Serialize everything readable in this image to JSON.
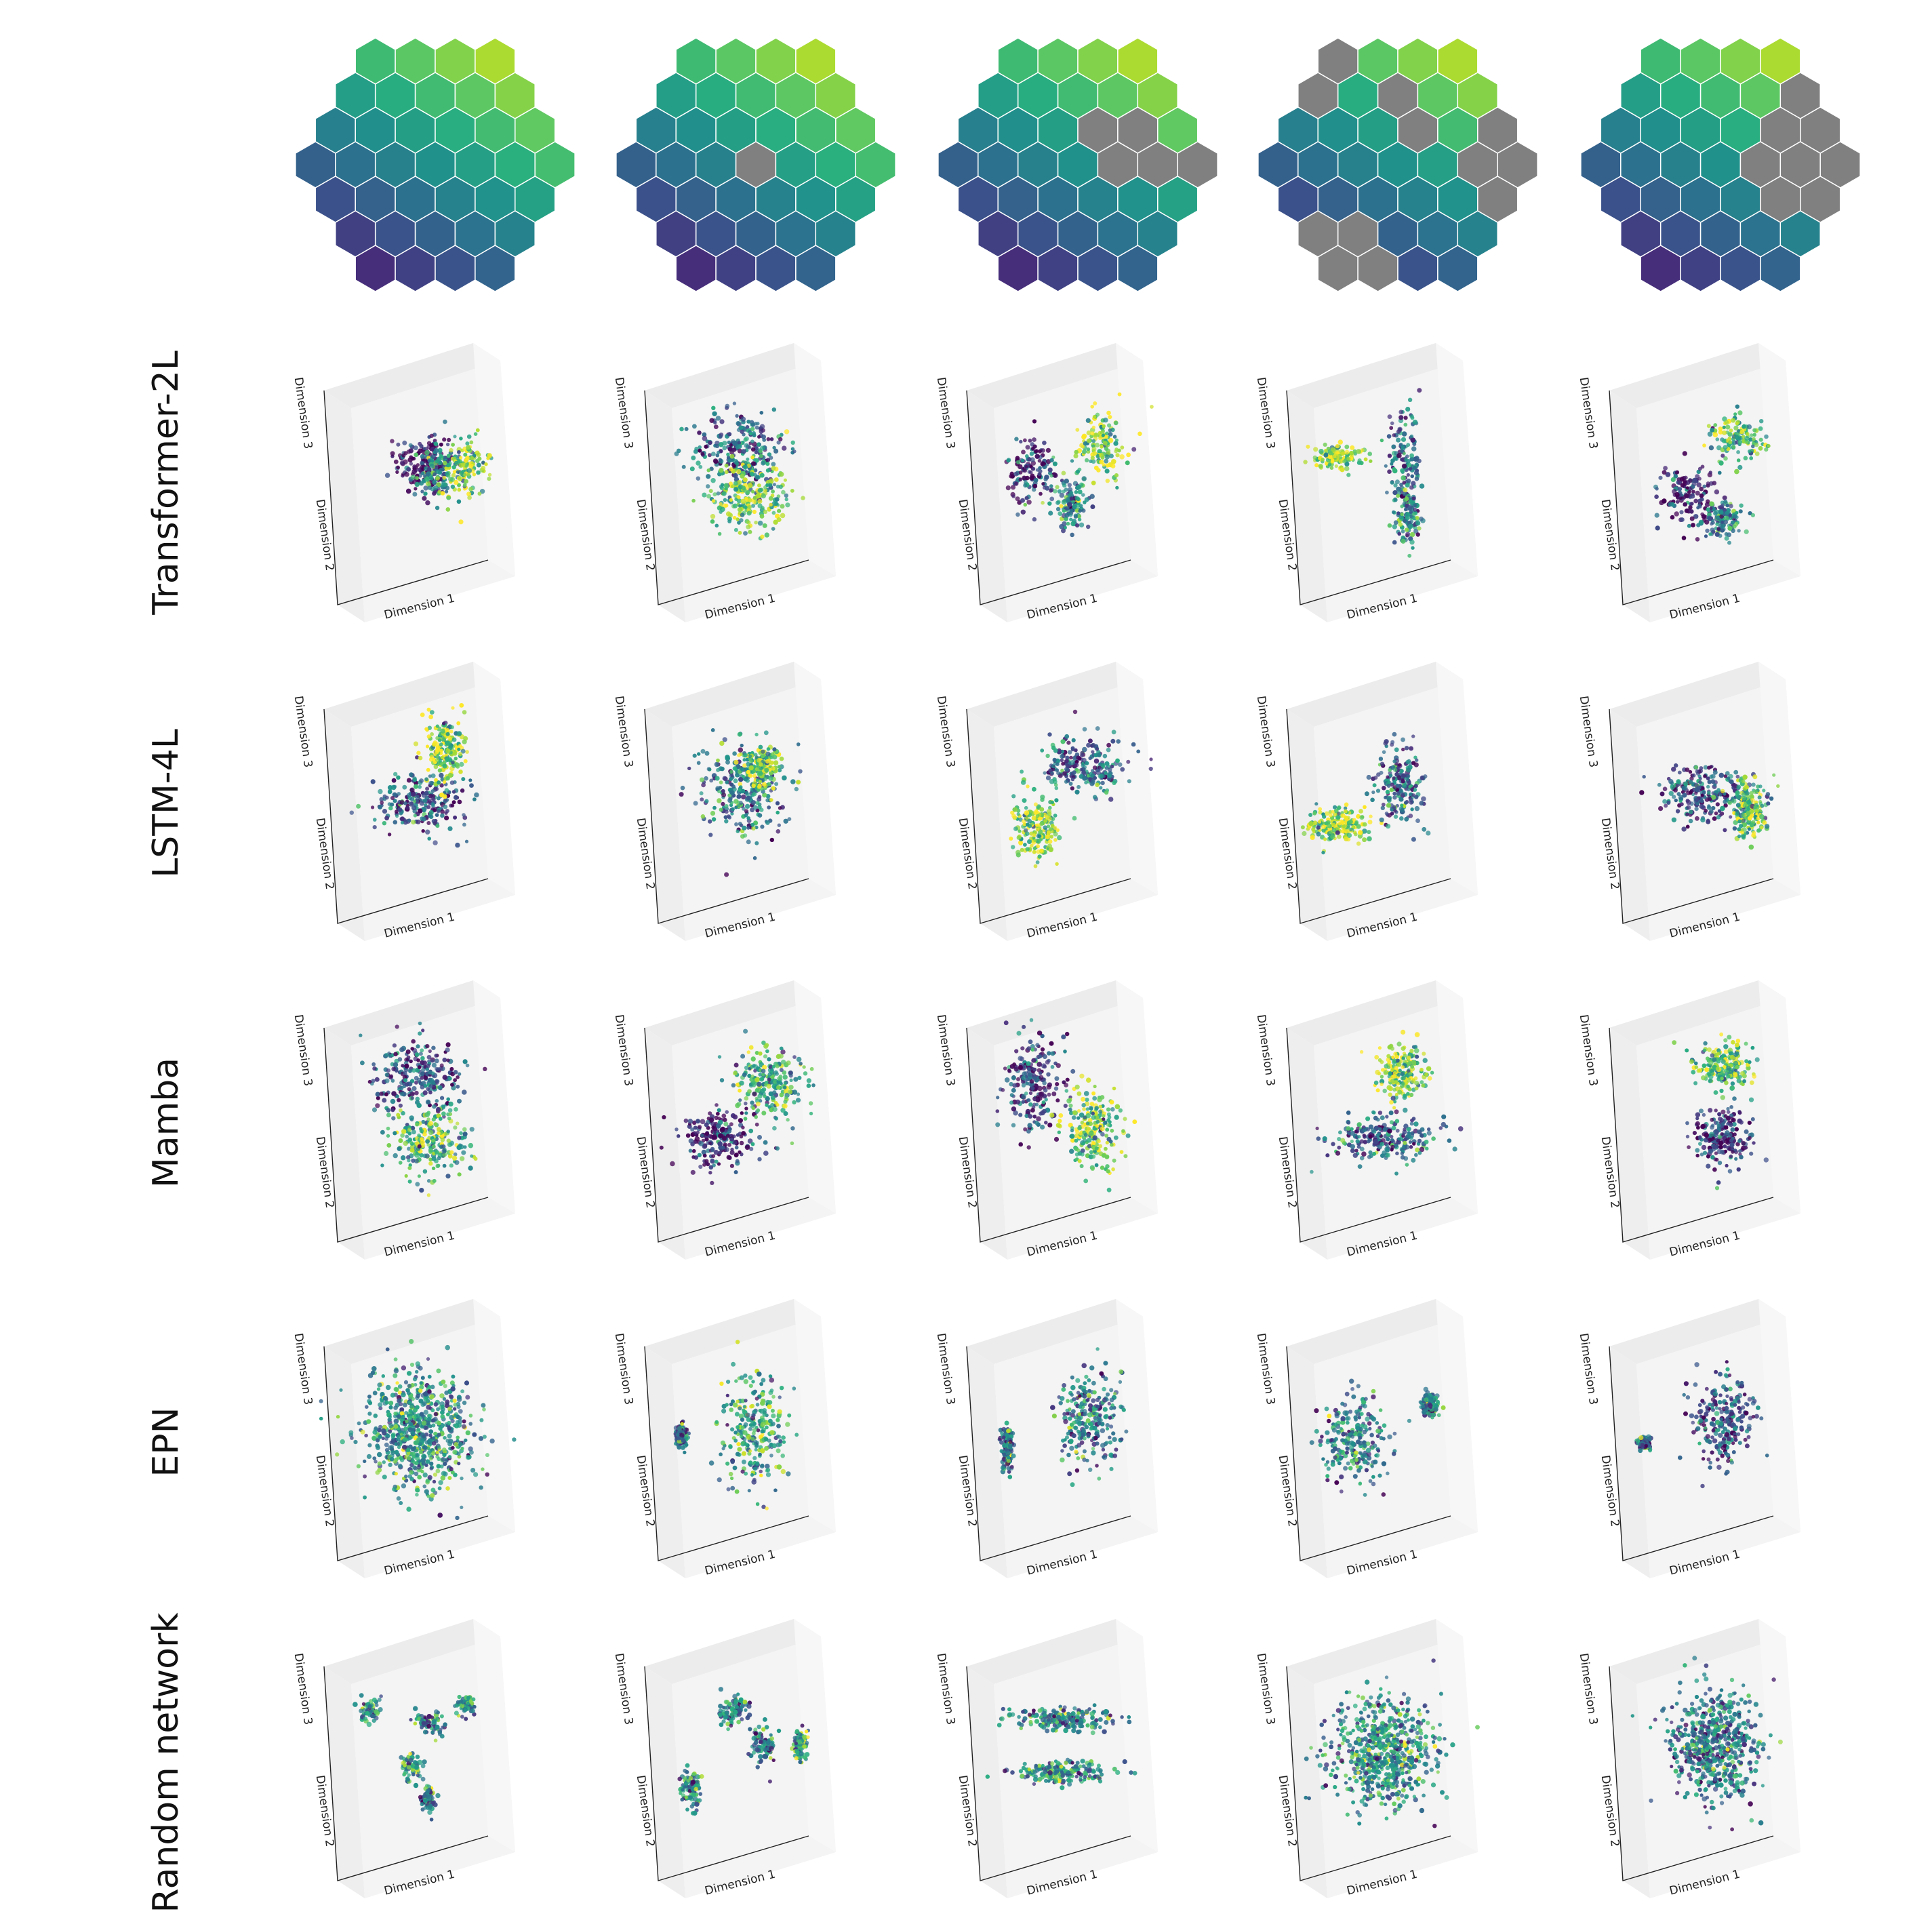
{
  "figure": {
    "row_labels": [
      "Transformer-2L",
      "LSTM-4L",
      "Mamba",
      "EPN",
      "Random network"
    ],
    "axis_labels": {
      "x": "Dimension 1",
      "y": "Dimension 2",
      "z": "Dimension 3"
    },
    "colormap": [
      "#440154",
      "#472d7b",
      "#3b528b",
      "#2c728e",
      "#21918c",
      "#28ae80",
      "#5ec962",
      "#addc30",
      "#fde725"
    ],
    "masked_color": "#808080"
  },
  "chart_data": {
    "type": "scatter",
    "description_of_layout": "",
    "hex_maps": [
      {
        "masked": []
      },
      {
        "masked": [
          [
            0,
            0
          ]
        ]
      },
      {
        "masked": [
          [
            1,
            0
          ],
          [
            2,
            0
          ],
          [
            3,
            0
          ],
          [
            1,
            -1
          ],
          [
            2,
            -1
          ]
        ]
      },
      {
        "masked": [
          [
            -1,
            -3
          ],
          [
            0,
            -3
          ],
          [
            -2,
            -2
          ],
          [
            -1,
            -2
          ],
          [
            -3,
            3
          ],
          [
            -2,
            3
          ],
          [
            -3,
            2
          ],
          [
            -2,
            2
          ],
          [
            3,
            -1
          ],
          [
            3,
            0
          ],
          [
            2,
            0
          ],
          [
            2,
            1
          ],
          [
            1,
            -2
          ],
          [
            1,
            -1
          ]
        ]
      },
      {
        "masked": [
          [
            3,
            -2
          ],
          [
            2,
            -1
          ],
          [
            3,
            -1
          ],
          [
            1,
            0
          ],
          [
            2,
            0
          ],
          [
            3,
            0
          ],
          [
            1,
            1
          ],
          [
            2,
            1
          ]
        ]
      }
    ],
    "scatter_panels": [
      [
        {
          "clusters": [
            [
              0.05,
              0.15,
              0.32,
              0.35,
              0.0
            ],
            [
              0.2,
              0.0,
              0.25,
              0.25,
              0.5
            ],
            [
              0.55,
              0.1,
              0.25,
              0.3,
              0.75
            ]
          ]
        },
        {
          "clusters": [
            [
              0.0,
              0.3,
              0.5,
              0.4,
              0.35
            ],
            [
              0.1,
              -0.25,
              0.4,
              0.35,
              0.75
            ]
          ]
        },
        {
          "clusters": [
            [
              -0.35,
              0.05,
              0.28,
              0.35,
              0.15
            ],
            [
              0.45,
              0.35,
              0.3,
              0.35,
              0.8
            ],
            [
              0.1,
              -0.35,
              0.2,
              0.25,
              0.45
            ]
          ]
        },
        {
          "clusters": [
            [
              -0.55,
              0.2,
              0.3,
              0.12,
              0.85
            ],
            [
              0.25,
              0.1,
              0.18,
              0.55,
              0.35
            ],
            [
              0.3,
              -0.45,
              0.12,
              0.25,
              0.45
            ]
          ]
        },
        {
          "clusters": [
            [
              -0.2,
              -0.2,
              0.28,
              0.3,
              0.1
            ],
            [
              0.4,
              0.4,
              0.3,
              0.25,
              0.7
            ],
            [
              0.2,
              -0.5,
              0.2,
              0.2,
              0.4
            ]
          ]
        }
      ],
      [
        {
          "clusters": [
            [
              0.0,
              -0.1,
              0.5,
              0.3,
              0.3
            ],
            [
              0.3,
              0.5,
              0.2,
              0.35,
              0.8
            ]
          ]
        },
        {
          "clusters": [
            [
              0.0,
              0.05,
              0.45,
              0.5,
              0.4
            ],
            [
              0.25,
              0.3,
              0.2,
              0.2,
              0.75
            ]
          ]
        },
        {
          "clusters": [
            [
              0.25,
              0.3,
              0.45,
              0.3,
              0.35
            ],
            [
              -0.3,
              -0.4,
              0.25,
              0.3,
              0.8
            ]
          ]
        },
        {
          "clusters": [
            [
              -0.55,
              -0.35,
              0.3,
              0.18,
              0.85
            ],
            [
              0.2,
              0.1,
              0.25,
              0.4,
              0.35
            ]
          ]
        },
        {
          "clusters": [
            [
              0.0,
              0.0,
              0.5,
              0.3,
              0.25
            ],
            [
              0.5,
              -0.2,
              0.2,
              0.3,
              0.7
            ]
          ]
        }
      ],
      [
        {
          "clusters": [
            [
              0.0,
              0.4,
              0.5,
              0.35,
              0.25
            ],
            [
              0.1,
              -0.35,
              0.4,
              0.35,
              0.65
            ]
          ]
        },
        {
          "clusters": [
            [
              -0.25,
              -0.3,
              0.4,
              0.3,
              0.15
            ],
            [
              0.35,
              0.35,
              0.35,
              0.35,
              0.6
            ]
          ]
        },
        {
          "clusters": [
            [
              -0.35,
              0.3,
              0.3,
              0.45,
              0.2
            ],
            [
              0.35,
              -0.2,
              0.3,
              0.4,
              0.75
            ]
          ]
        },
        {
          "clusters": [
            [
              0.0,
              -0.3,
              0.6,
              0.25,
              0.3
            ],
            [
              0.25,
              0.45,
              0.25,
              0.3,
              0.8
            ]
          ]
        },
        {
          "clusters": [
            [
              0.2,
              0.5,
              0.3,
              0.25,
              0.7
            ],
            [
              0.2,
              -0.3,
              0.3,
              0.3,
              0.15
            ]
          ]
        }
      ],
      [
        {
          "clusters": [
            [
              0.0,
              0.0,
              0.6,
              0.6,
              0.5
            ]
          ]
        },
        {
          "clusters": [
            [
              0.15,
              0.0,
              0.35,
              0.6,
              0.55
            ],
            [
              -0.7,
              -0.05,
              0.06,
              0.1,
              0.35
            ]
          ]
        },
        {
          "clusters": [
            [
              0.3,
              0.1,
              0.35,
              0.5,
              0.45
            ],
            [
              -0.65,
              -0.2,
              0.06,
              0.2,
              0.4
            ]
          ]
        },
        {
          "clusters": [
            [
              -0.35,
              -0.1,
              0.35,
              0.45,
              0.4
            ],
            [
              0.55,
              0.3,
              0.07,
              0.12,
              0.45
            ]
          ]
        },
        {
          "clusters": [
            [
              0.2,
              0.1,
              0.35,
              0.45,
              0.25
            ],
            [
              -0.72,
              -0.15,
              0.06,
              0.06,
              0.35
            ]
          ]
        }
      ],
      [
        {
          "clusters": [
            [
              -0.6,
              0.45,
              0.1,
              0.12,
              0.55
            ],
            [
              0.1,
              0.3,
              0.18,
              0.12,
              0.45
            ],
            [
              0.55,
              0.5,
              0.12,
              0.12,
              0.5
            ],
            [
              -0.1,
              -0.2,
              0.12,
              0.15,
              0.6
            ],
            [
              0.1,
              -0.55,
              0.08,
              0.12,
              0.4
            ]
          ]
        },
        {
          "clusters": [
            [
              -0.6,
              -0.45,
              0.1,
              0.2,
              0.45
            ],
            [
              -0.1,
              0.45,
              0.18,
              0.15,
              0.45
            ],
            [
              0.25,
              0.05,
              0.12,
              0.22,
              0.4
            ],
            [
              0.7,
              0.05,
              0.08,
              0.18,
              0.55
            ]
          ]
        },
        {
          "clusters": [
            [
              0.0,
              0.35,
              0.55,
              0.12,
              0.45
            ],
            [
              0.0,
              -0.25,
              0.5,
              0.12,
              0.5
            ]
          ]
        },
        {
          "clusters": [
            [
              0.0,
              0.0,
              0.55,
              0.55,
              0.5
            ]
          ]
        },
        {
          "clusters": [
            [
              0.1,
              0.05,
              0.45,
              0.55,
              0.4
            ]
          ]
        }
      ]
    ]
  }
}
